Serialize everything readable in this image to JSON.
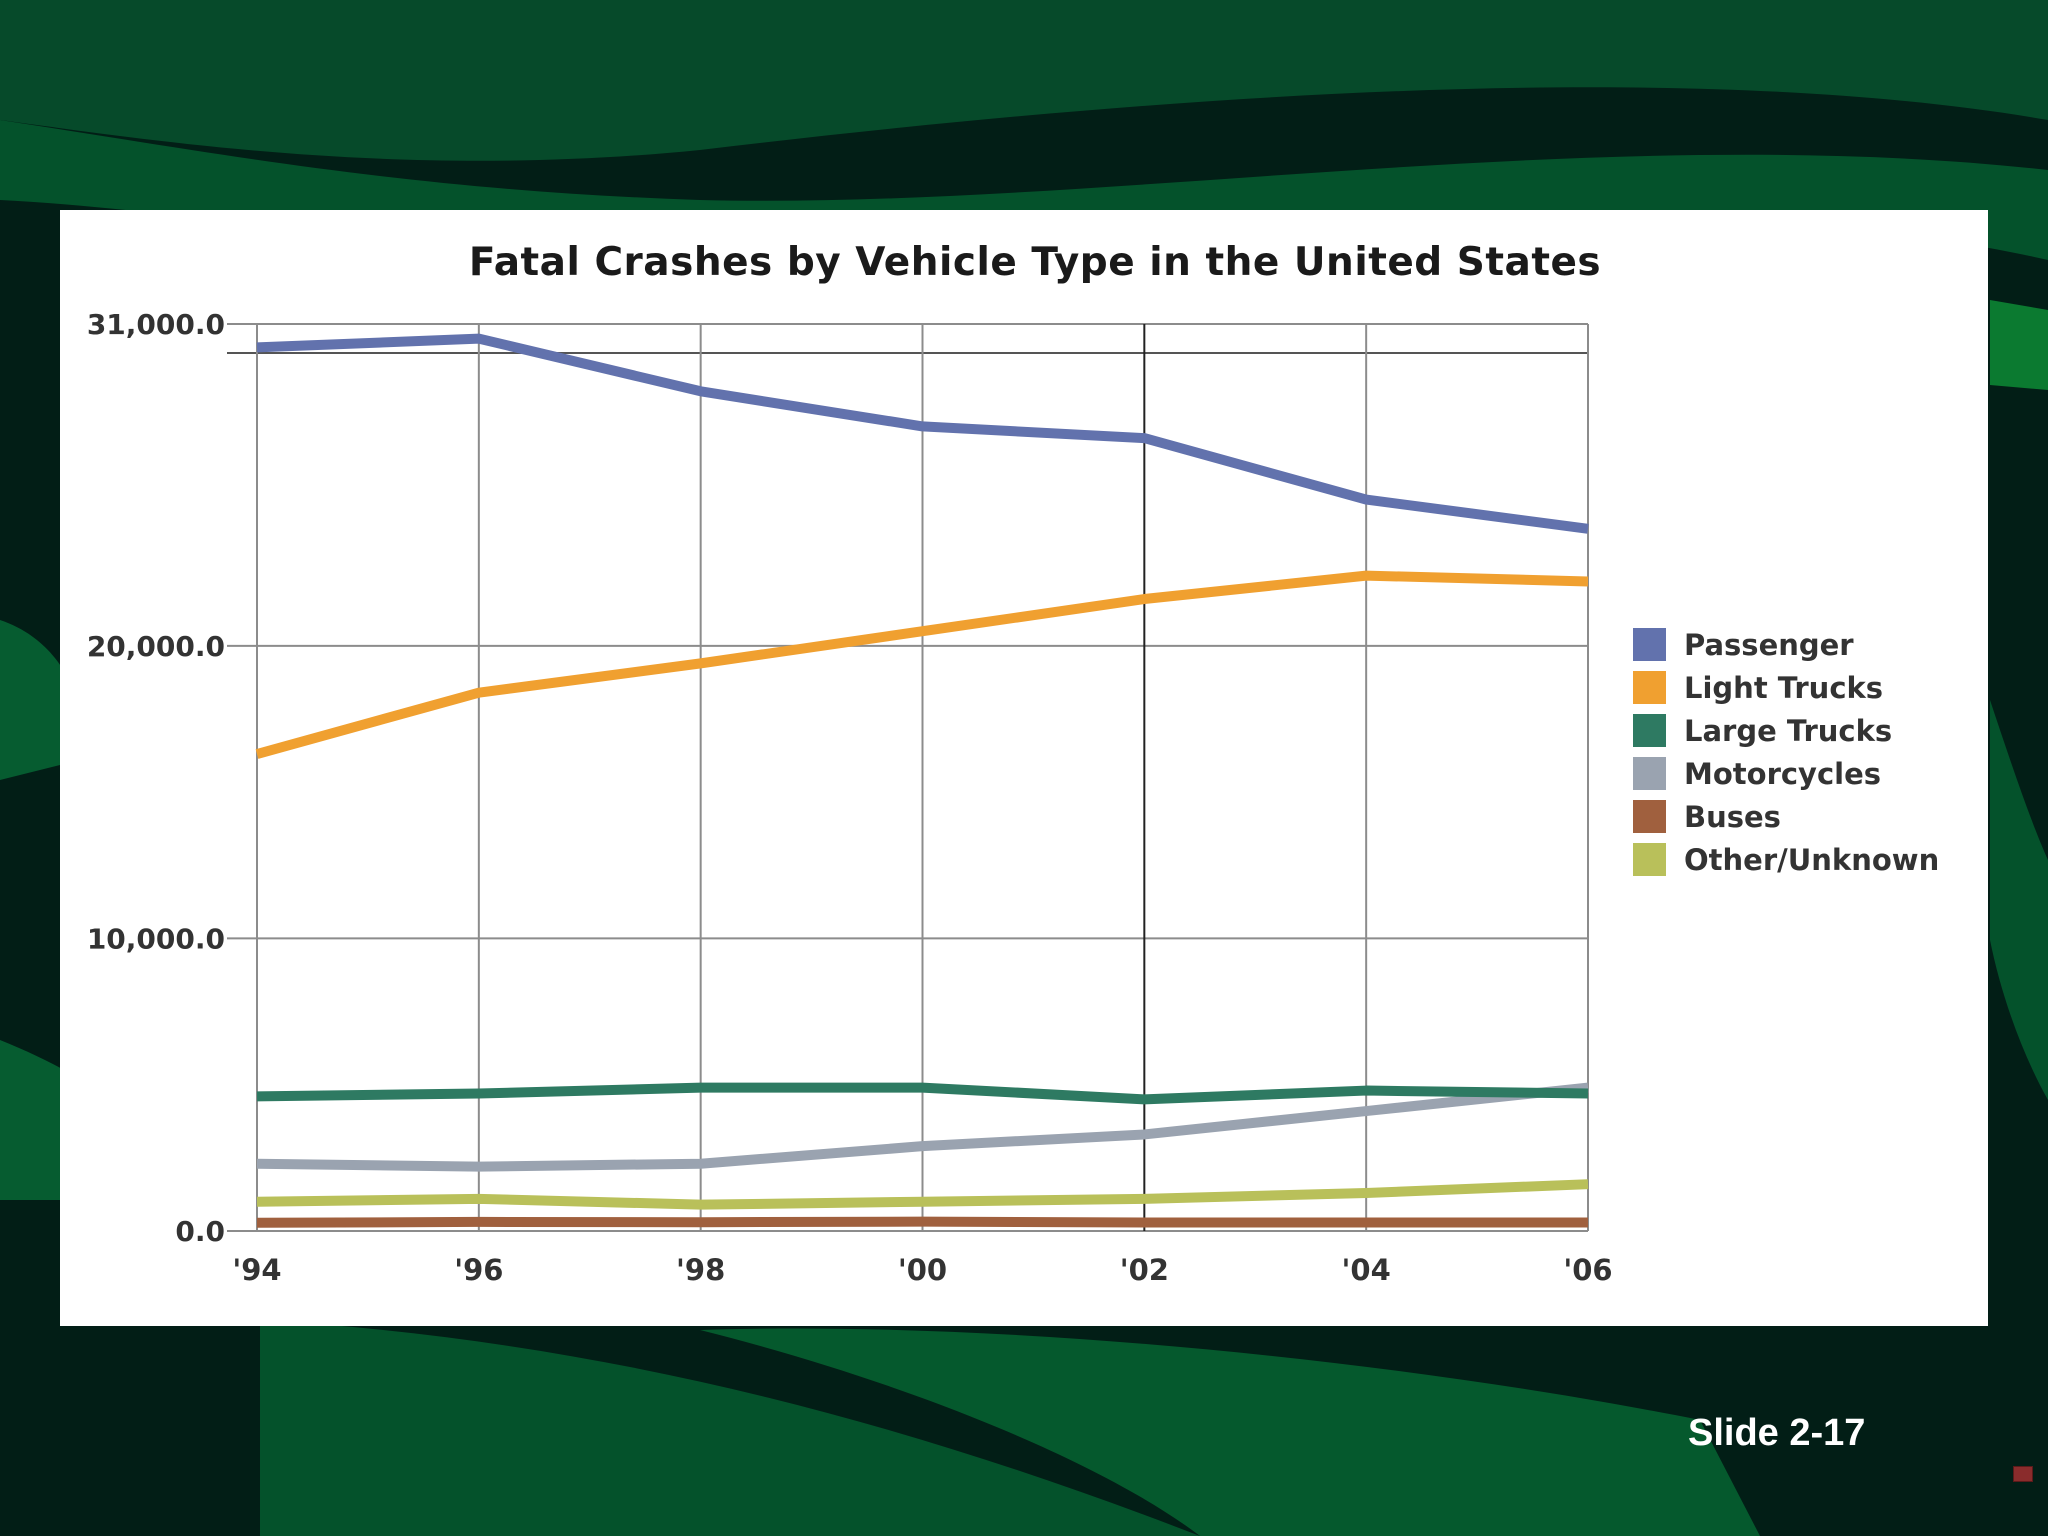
{
  "slide": {
    "number_label": "Slide 2-17"
  },
  "colors": {
    "bg_dark": "#02241a",
    "bg_green": "#04522b",
    "panel": "#ffffff",
    "grid": "#888888"
  },
  "chart_data": {
    "type": "line",
    "title": "Fatal Crashes by Vehicle Type in the United States",
    "xlabel": "",
    "ylabel": "",
    "categories": [
      "'94",
      "'96",
      "'98",
      "'00",
      "'02",
      "'04",
      "'06"
    ],
    "ylim": [
      0,
      31000
    ],
    "yticks": [
      0,
      10000,
      20000,
      31000
    ],
    "ytick_labels": [
      "0.0",
      "10,000.0",
      "20,000.0",
      "31,000.0"
    ],
    "grid": true,
    "legend_position": "right",
    "series": [
      {
        "name": "Passenger",
        "color": "#6272ad",
        "values": [
          30200,
          30500,
          28700,
          27500,
          27100,
          25000,
          24000
        ]
      },
      {
        "name": "Light Trucks",
        "color": "#f0a030",
        "values": [
          16300,
          18400,
          19400,
          20500,
          21600,
          22400,
          22200
        ]
      },
      {
        "name": "Large Trucks",
        "color": "#2e7a62",
        "values": [
          4600,
          4700,
          4900,
          4900,
          4500,
          4800,
          4700
        ]
      },
      {
        "name": "Motorcycles",
        "color": "#9aa3b0",
        "values": [
          2300,
          2200,
          2300,
          2900,
          3300,
          4100,
          4900
        ]
      },
      {
        "name": "Buses",
        "color": "#a0603e",
        "values": [
          280,
          310,
          300,
          320,
          290,
          290,
          290
        ]
      },
      {
        "name": "Other/Unknown",
        "color": "#b9c05a",
        "values": [
          1000,
          1100,
          900,
          1000,
          1100,
          1300,
          1600
        ]
      }
    ]
  }
}
